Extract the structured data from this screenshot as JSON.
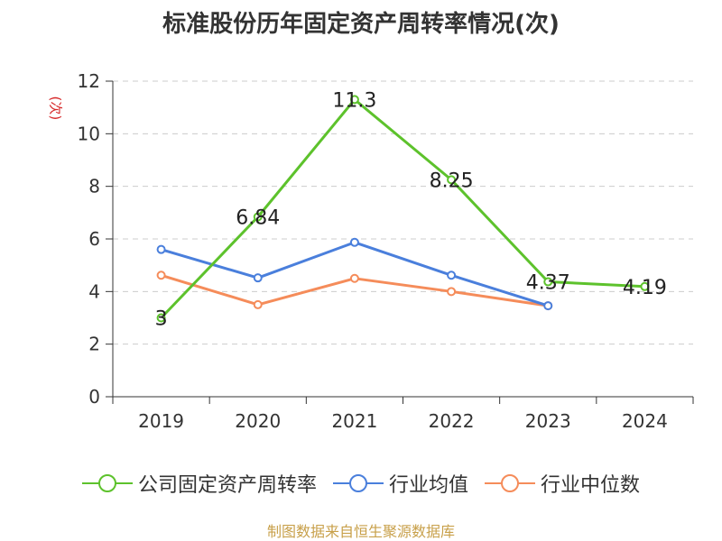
{
  "title": "标准股份历年固定资产周转率情况(次)",
  "unit_label": "(次)",
  "source": "制图数据来自恒生聚源数据库",
  "colors": {
    "company": "#5dc22c",
    "industry_avg": "#4a7fdc",
    "industry_median": "#f58c5a",
    "grid": "#cccccc",
    "axis": "#333333"
  },
  "chart_data": {
    "type": "line",
    "title": "标准股份历年固定资产周转率情况(次)",
    "ylabel": "(次)",
    "xlabel": "",
    "categories": [
      "2019",
      "2020",
      "2021",
      "2022",
      "2023",
      "2024"
    ],
    "ylim": [
      0,
      12
    ],
    "yticks": [
      0,
      2,
      4,
      6,
      8,
      10,
      12
    ],
    "grid": "horizontal-dashed",
    "legend_position": "bottom",
    "series": [
      {
        "name": "公司固定资产周转率",
        "values": [
          3,
          6.84,
          11.3,
          8.25,
          4.37,
          4.19
        ],
        "labels": [
          "3",
          "6.84",
          "11.3",
          "8.25",
          "4.37",
          "4.19"
        ],
        "color": "#5dc22c"
      },
      {
        "name": "行业均值",
        "values": [
          5.6,
          4.52,
          5.87,
          4.62,
          3.46,
          null
        ],
        "color": "#4a7fdc"
      },
      {
        "name": "行业中位数",
        "values": [
          4.62,
          3.5,
          4.5,
          4.0,
          3.46,
          null
        ],
        "color": "#f58c5a"
      }
    ]
  }
}
